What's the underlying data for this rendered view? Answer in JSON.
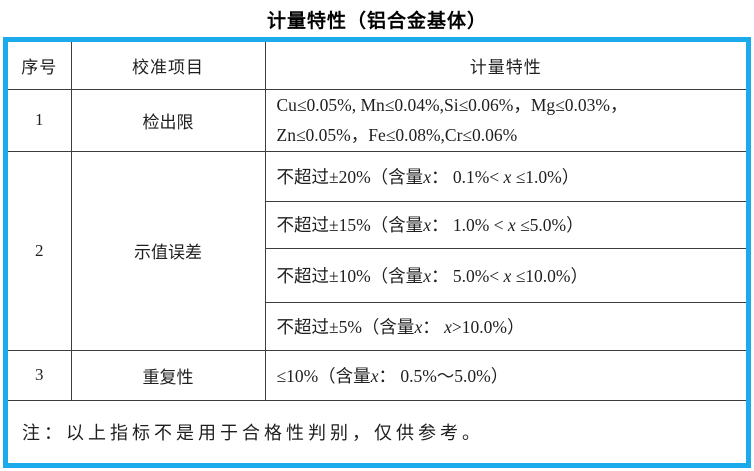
{
  "title": "计量特性（铝合金基体）",
  "table": {
    "headers": [
      "序号",
      "校准项目",
      "计量特性"
    ],
    "row1": {
      "no": "1",
      "item": "检出限",
      "spec_lines": [
        "Cu≤0.05%, Mn≤0.04%,Si≤0.06%，Mg≤0.03%，",
        "Zn≤0.05%，Fe≤0.08%,Cr≤0.06%"
      ]
    },
    "row2": {
      "no": "2",
      "item": "示值误差",
      "specs": [
        "不超过±20%（含量x： 0.1%< x ≤1.0%）",
        "不超过±15%（含量x： 1.0% < x ≤5.0%）",
        "不超过±10%（含量x： 5.0%< x ≤10.0%）",
        "不超过±5%（含量x： x>10.0%）"
      ]
    },
    "row3": {
      "no": "3",
      "item": "重复性",
      "spec": "≤10%（含量x： 0.5%～5.0%）"
    },
    "note": "注：以上指标不是用于合格性判别，仅供参考。"
  },
  "colors": {
    "frame_blue": "#1baaec",
    "grid_line": "#3d3d3d",
    "text": "#1f1f1f"
  }
}
